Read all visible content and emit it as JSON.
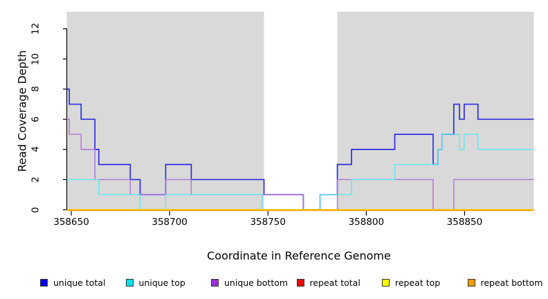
{
  "chart_data": {
    "type": "line",
    "subtype": "step-coverage",
    "title": "",
    "xlabel": "Coordinate in Reference Genome",
    "ylabel": "Read Coverage Depth",
    "xlim": [
      358647.7,
      358885.2
    ],
    "ylim": [
      0,
      13.13
    ],
    "xticks": [
      358650,
      358700,
      358750,
      358800,
      358850
    ],
    "yticks": [
      0,
      2,
      4,
      6,
      8,
      10,
      12
    ],
    "grid": false,
    "plot_bg_color": "#d9d9d9",
    "unshaded_region": {
      "start": 358748,
      "end": 358785.3,
      "color": "#ffffff"
    },
    "axis_color": "#000000",
    "series": [
      {
        "name": "unique total",
        "color": "#2c2ce0",
        "width": 1.7,
        "steps": [
          [
            358647.7,
            8
          ],
          [
            358649,
            7
          ],
          [
            358655,
            6
          ],
          [
            358662,
            4
          ],
          [
            358664,
            3
          ],
          [
            358680,
            2
          ],
          [
            358685,
            1
          ],
          [
            358698,
            3
          ],
          [
            358711,
            2
          ],
          [
            358748,
            1
          ],
          [
            358768,
            0
          ],
          [
            358776.5,
            1
          ],
          [
            358785.3,
            3
          ],
          [
            358792.5,
            4
          ],
          [
            358814.5,
            5
          ],
          [
            358834,
            3
          ],
          [
            358836.5,
            4
          ],
          [
            358838.5,
            5
          ],
          [
            358844.5,
            7
          ],
          [
            358847.4,
            6
          ],
          [
            358849.8,
            7
          ],
          [
            358856.8,
            6
          ]
        ]
      },
      {
        "name": "unique bottom",
        "color": "#ae72d9",
        "width": 1.4,
        "steps": [
          [
            358647.7,
            6
          ],
          [
            358649,
            5
          ],
          [
            358655,
            4
          ],
          [
            358662,
            2
          ],
          [
            358680,
            1
          ],
          [
            358698,
            2
          ],
          [
            358711,
            1
          ],
          [
            358768,
            0
          ],
          [
            358785.3,
            2
          ],
          [
            358834,
            0
          ],
          [
            358844.5,
            2
          ]
        ]
      },
      {
        "name": "unique top",
        "color": "#5fe6ef",
        "width": 1.4,
        "steps": [
          [
            358647.7,
            2
          ],
          [
            358664,
            1
          ],
          [
            358685,
            0
          ],
          [
            358698,
            1
          ],
          [
            358747,
            0
          ],
          [
            358776.5,
            1
          ],
          [
            358792.5,
            2
          ],
          [
            358814.5,
            3
          ],
          [
            358836.5,
            4
          ],
          [
            358838.5,
            5
          ],
          [
            358847.4,
            4
          ],
          [
            358849.8,
            5
          ],
          [
            358856.8,
            4
          ]
        ]
      },
      {
        "name": "repeat total",
        "color": "#e60000",
        "width": 1.4,
        "steps": [
          [
            358647.7,
            0
          ]
        ]
      },
      {
        "name": "repeat top",
        "color": "#f2f200",
        "width": 1.4,
        "steps": [
          [
            358647.7,
            0
          ]
        ]
      },
      {
        "name": "repeat bottom",
        "color": "#ffa400",
        "width": 1.8,
        "steps": [
          [
            358647.7,
            0
          ]
        ]
      }
    ]
  },
  "legend": {
    "items": [
      {
        "label": "unique total",
        "color": "#0000e8"
      },
      {
        "label": "unique top",
        "color": "#00e1ea"
      },
      {
        "label": "unique bottom",
        "color": "#9a2fd4"
      },
      {
        "label": "repeat total",
        "color": "#ef0005"
      },
      {
        "label": "repeat top",
        "color": "#fbfb00"
      },
      {
        "label": "repeat bottom",
        "color": "#f39c00"
      }
    ]
  }
}
